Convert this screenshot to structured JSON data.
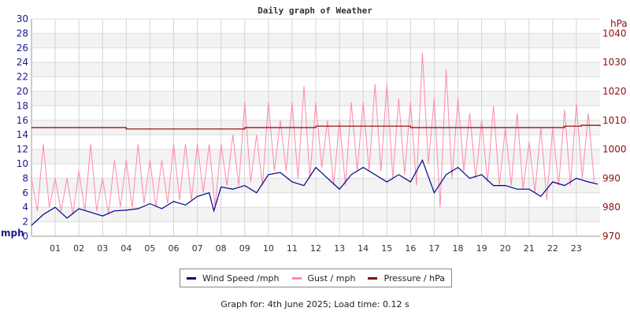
{
  "chart_data": {
    "type": "line",
    "title": "Daily graph of Weather",
    "left_axis": {
      "label": "mph",
      "ylim": [
        0,
        30
      ],
      "ticks": [
        0,
        2,
        4,
        6,
        8,
        10,
        12,
        14,
        16,
        18,
        20,
        22,
        24,
        26,
        28,
        30
      ],
      "color": "#1a1a8c"
    },
    "right_axis": {
      "label": "hPa",
      "ylim": [
        970,
        1045
      ],
      "ticks": [
        970,
        980,
        990,
        1000,
        1010,
        1020,
        1030,
        1040
      ],
      "color": "#8b1010"
    },
    "x_axis": {
      "xlim": [
        0,
        24
      ],
      "tick_labels": [
        "01",
        "02",
        "03",
        "04",
        "05",
        "06",
        "07",
        "08",
        "09",
        "10",
        "11",
        "12",
        "13",
        "14",
        "15",
        "16",
        "17",
        "18",
        "19",
        "20",
        "21",
        "22",
        "23"
      ]
    },
    "grid": true,
    "series": [
      {
        "name": "Wind Speed /mph",
        "axis": "left",
        "color": "#00008b",
        "x": [
          0,
          0.5,
          1,
          1.5,
          2,
          2.5,
          3,
          3.5,
          4,
          4.5,
          5,
          5.5,
          6,
          6.5,
          7,
          7.5,
          7.7,
          8,
          8.5,
          9,
          9.5,
          10,
          10.5,
          11,
          11.5,
          12,
          12.5,
          13,
          13.5,
          14,
          14.5,
          15,
          15.5,
          16,
          16.5,
          17,
          17.5,
          18,
          18.5,
          19,
          19.5,
          20,
          20.5,
          21,
          21.5,
          22,
          22.5,
          23,
          23.5,
          23.9
        ],
        "values": [
          1.5,
          3,
          4,
          2.5,
          3.8,
          3.3,
          2.8,
          3.5,
          3.6,
          3.8,
          4.5,
          3.8,
          4.8,
          4.3,
          5.5,
          6,
          3.5,
          6.8,
          6.5,
          7,
          6,
          8.5,
          8.8,
          7.5,
          7,
          9.5,
          8,
          6.5,
          8.5,
          9.5,
          8.5,
          7.5,
          8.5,
          7.5,
          10.5,
          6,
          8.5,
          9.5,
          8,
          8.5,
          7,
          7,
          6.5,
          6.5,
          5.5,
          7.5,
          7,
          8,
          7.5,
          7.2
        ]
      },
      {
        "name": "Gust / mph",
        "axis": "left",
        "color": "#ff88aa",
        "x_step_hours": 0.25,
        "values": [
          8,
          3.5,
          12.7,
          4,
          8,
          3.5,
          8,
          3,
          9,
          3.5,
          12.7,
          3.5,
          8,
          3,
          10.5,
          4,
          10.5,
          4,
          12.7,
          4.5,
          10.5,
          4,
          10.5,
          4.5,
          12.7,
          5,
          12.7,
          5,
          12.7,
          6,
          12.7,
          4,
          12.7,
          7,
          14,
          7,
          18.5,
          7.5,
          14,
          7,
          18.5,
          9,
          16,
          9,
          18.5,
          8,
          20.7,
          8,
          18.5,
          9.5,
          16,
          7,
          16,
          7,
          18.5,
          9,
          18.5,
          9,
          21,
          9,
          21,
          8,
          19,
          8.5,
          18.5,
          7,
          25.3,
          10,
          19,
          4,
          23,
          8,
          19,
          9,
          17,
          8,
          16,
          7.5,
          18,
          7,
          15,
          7,
          17,
          6.5,
          13,
          6,
          15,
          5,
          15,
          7,
          17.5,
          7,
          18.3,
          8,
          17,
          7.5
        ]
      },
      {
        "name": "Pressure / hPa",
        "axis": "right",
        "color": "#8b0000",
        "x": [
          0,
          3.5,
          4,
          8.5,
          9,
          12,
          16,
          20,
          22.5,
          23.2,
          24
        ],
        "values": [
          1007.5,
          1007.5,
          1007,
          1007,
          1007.5,
          1008,
          1007.5,
          1007.5,
          1008,
          1008.3,
          1008
        ]
      }
    ]
  },
  "legend": {
    "items": [
      {
        "label": "Wind Speed /mph",
        "color": "#00008b"
      },
      {
        "label": "Gust / mph",
        "color": "#ff88aa"
      },
      {
        "label": "Pressure / hPa",
        "color": "#8b0000"
      }
    ]
  },
  "footer": "Graph for: 4th June 2025; Load time: 0.12 s"
}
